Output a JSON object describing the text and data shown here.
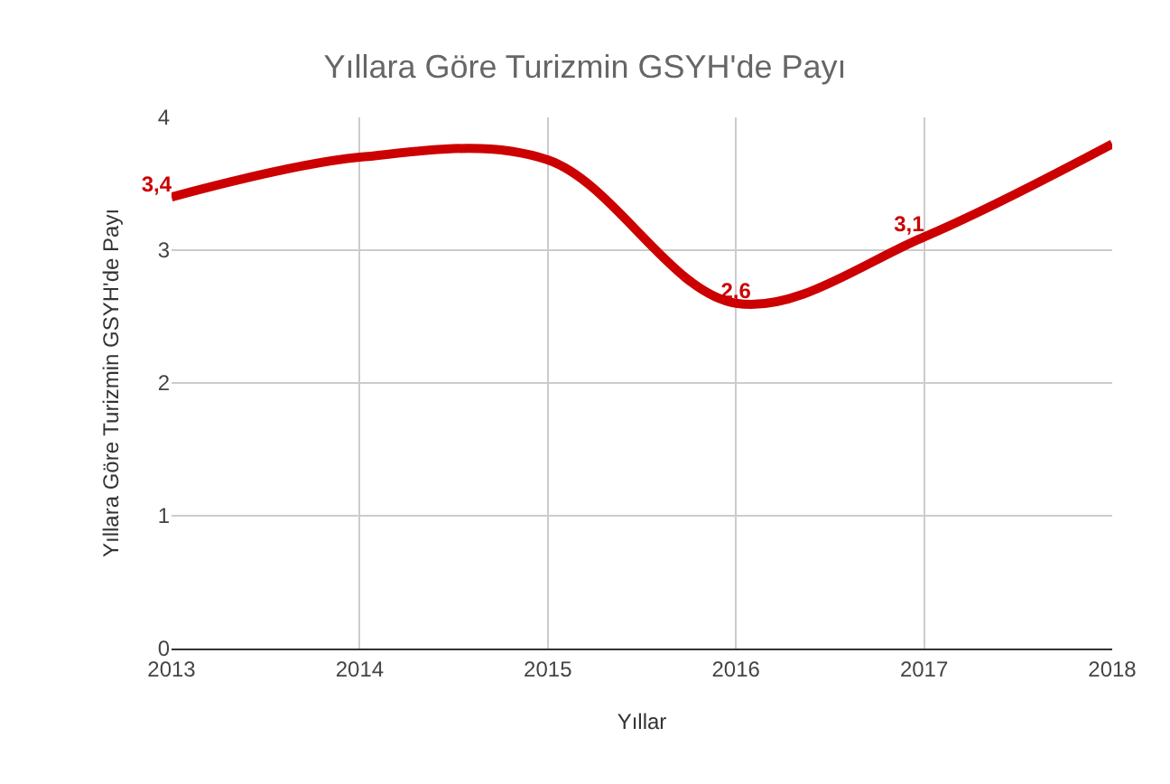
{
  "chart_data": {
    "type": "line",
    "title": "Yıllara Göre Turizmin GSYH'de Payı",
    "xlabel": "Yıllar",
    "ylabel": "Yıllara Göre Turizmin GSYH'de Payı",
    "x": [
      2013,
      2014,
      2015,
      2016,
      2017,
      2018
    ],
    "series": [
      {
        "color": "#cc0000",
        "values": [
          3.4,
          3.7,
          3.68,
          2.6,
          3.1,
          3.8
        ],
        "value_labels": [
          "3,4",
          null,
          null,
          "2,6",
          "3,1",
          null
        ]
      }
    ],
    "xlim": [
      2013,
      2018
    ],
    "xticks": [
      2013,
      2014,
      2015,
      2016,
      2017,
      2018
    ],
    "ylim": [
      0,
      4
    ],
    "yticks": [
      0,
      1,
      2,
      3,
      4
    ],
    "grid": true,
    "marker": "none",
    "line_style": "solid"
  }
}
